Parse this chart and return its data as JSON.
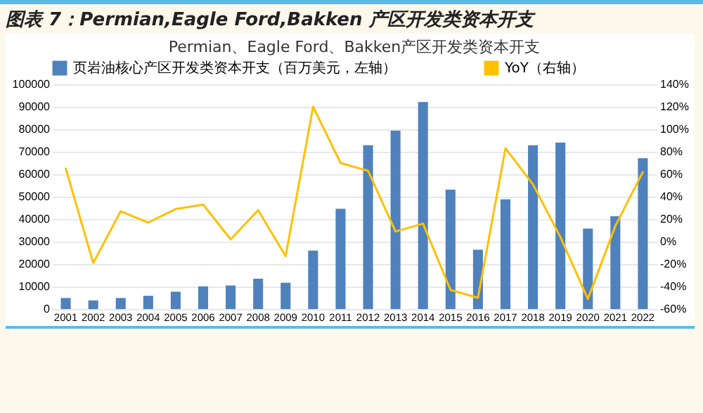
{
  "chart_data": {
    "type": "bar",
    "title": "图表 7：Permian,Eagle Ford,Bakken 产区开发类资本开支",
    "subtitle": "Permian、Eagle Ford、Bakken产区开发类资本开支",
    "categories": [
      "2001",
      "2002",
      "2003",
      "2004",
      "2005",
      "2006",
      "2007",
      "2008",
      "2009",
      "2010",
      "2011",
      "2012",
      "2013",
      "2014",
      "2015",
      "2016",
      "2017",
      "2018",
      "2019",
      "2020",
      "2021",
      "2022"
    ],
    "series": [
      {
        "name": "页岩油核心产区开发类资本开支（百万美元，左轴）",
        "color": "#4f81bd",
        "values": [
          4900,
          3800,
          4900,
          5900,
          7700,
          10100,
          10500,
          13500,
          11700,
          26000,
          44600,
          72900,
          79400,
          92100,
          53100,
          26400,
          48800,
          72900,
          74100,
          35800,
          41300,
          67100
        ]
      },
      {
        "name": "YoY（右轴）",
        "type": "line",
        "axis": "y2",
        "color": "#ffc000",
        "values": [
          65,
          -19,
          27,
          17,
          29,
          33,
          2,
          28,
          -13,
          120,
          70,
          63,
          9,
          16,
          -43,
          -50,
          83,
          51,
          4,
          -51,
          14,
          62
        ]
      }
    ],
    "ylim": [
      0,
      100000
    ],
    "yticks": [
      0,
      10000,
      20000,
      30000,
      40000,
      50000,
      60000,
      70000,
      80000,
      90000,
      100000
    ],
    "y2lim": [
      -60,
      140
    ],
    "y2ticks": [
      {
        "value": -60,
        "label": "-60%"
      },
      {
        "value": -40,
        "label": "-40%"
      },
      {
        "value": -20,
        "label": "-20%"
      },
      {
        "value": 0,
        "label": "0%"
      },
      {
        "value": 20,
        "label": "20%"
      },
      {
        "value": 40,
        "label": "40%"
      },
      {
        "value": 60,
        "label": "60%"
      },
      {
        "value": 80,
        "label": "80%"
      },
      {
        "value": 100,
        "label": "100%"
      },
      {
        "value": 120,
        "label": "120%"
      },
      {
        "value": 140,
        "label": "140%"
      }
    ],
    "grid": "y",
    "legend": "top"
  }
}
